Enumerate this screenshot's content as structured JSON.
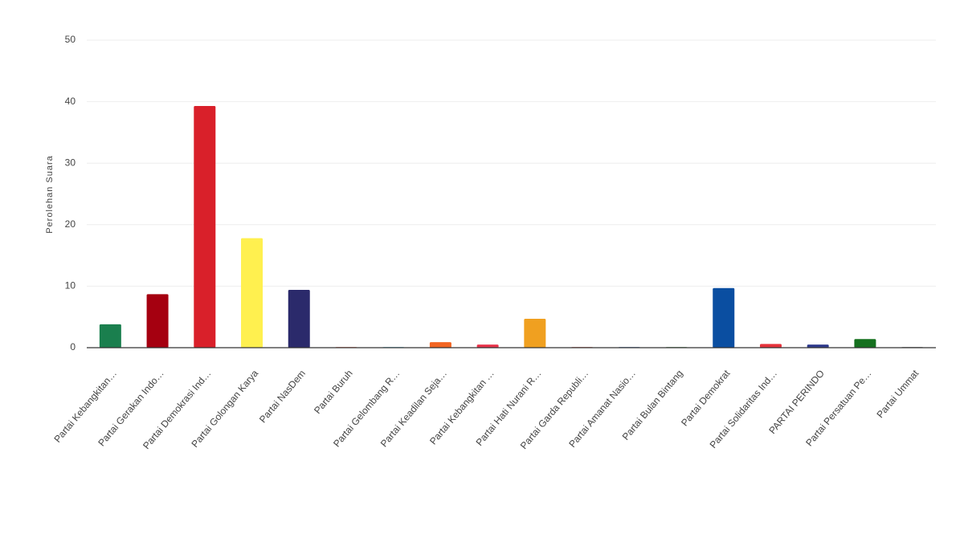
{
  "chart_data": {
    "type": "bar",
    "y_label": "Perolehan Suara",
    "categories": [
      "Partai Kebangkitan…",
      "Partai Gerakan Indo…",
      "Partai Demokrasi Ind…",
      "Partai Golongan Karya",
      "Partai NasDem",
      "Partai Buruh",
      "Partai Gelombang R…",
      "Partai Keadilan Seja…",
      "Partai Kebangkitan …",
      "Partai Hati Nurani R…",
      "Partai Garda Republi…",
      "Partai Amanat Nasio…",
      "Partai Bulan Bintang",
      "Partai Demokrat",
      "Partai Solidaritas Ind…",
      "PARTAI PERINDO",
      "Partai Persatuan Pe…",
      "Partai Ummat"
    ],
    "values": [
      3.8,
      8.7,
      39.3,
      17.8,
      9.4,
      0.1,
      0.1,
      0.9,
      0.5,
      4.7,
      0.1,
      0.1,
      0.1,
      9.7,
      0.6,
      0.5,
      1.4,
      0.1
    ],
    "colors": [
      "#1a7f4e",
      "#a50010",
      "#d9202a",
      "#fff04f",
      "#2b2a6b",
      "#e04020",
      "#2aa8c4",
      "#f26522",
      "#e8334a",
      "#f0a020",
      "#c0392b",
      "#1e4f9c",
      "#2e7d32",
      "#0a4ea1",
      "#e5323b",
      "#2e3a8c",
      "#15701f",
      "#555555"
    ],
    "ylim": [
      0,
      50
    ],
    "yticks": [
      0,
      10,
      20,
      30,
      40,
      50
    ],
    "grid": true
  }
}
